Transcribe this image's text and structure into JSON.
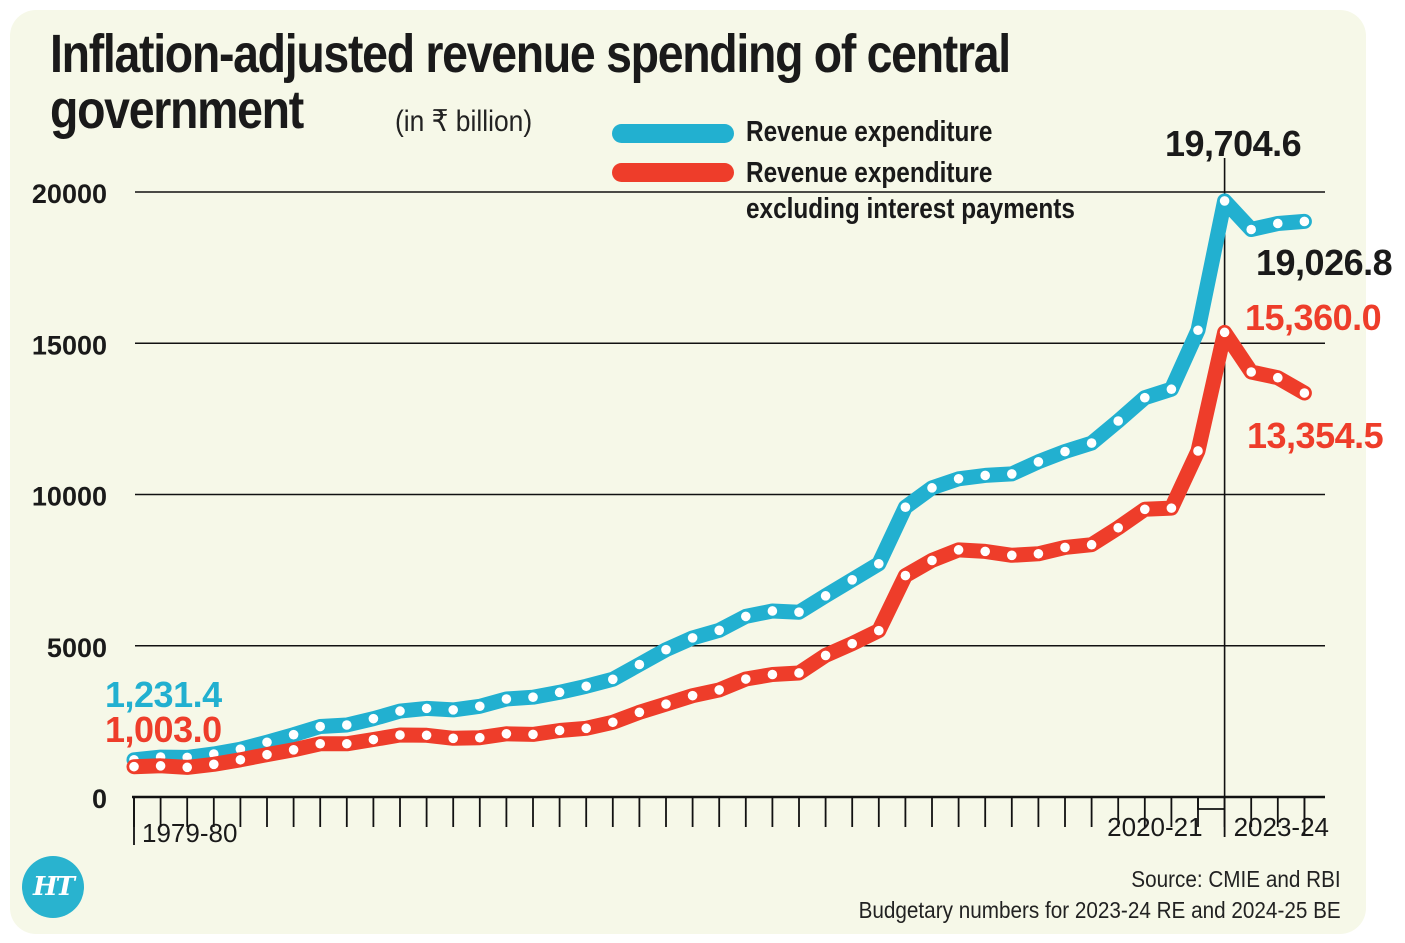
{
  "title": "Inflation-adjusted revenue spending of central government",
  "title_lines": [
    "Inflation-adjusted revenue spending of central",
    "government"
  ],
  "subtitle": "(in ₹ billion)",
  "legend": [
    {
      "label": "Revenue expenditure",
      "color": "#22b0d0"
    },
    {
      "label": "Revenue expenditure excluding interest payments",
      "label_lines": [
        "Revenue expenditure",
        "excluding interest payments"
      ],
      "color": "#ee3d2a"
    }
  ],
  "source": "Source: CMIE and RBI",
  "note": "Budgetary numbers for 2023-24 RE and 2024-25 BE",
  "logo": "HT",
  "colors": {
    "background": "#f6f8e8",
    "blue": "#22b0d0",
    "red": "#ee3d2a",
    "text": "#1a1a1a"
  },
  "chart_data": {
    "type": "line",
    "x_start_label": "1979-80",
    "x_marked_labels": [
      "1979-80",
      "2020-21",
      "2023-24"
    ],
    "ylim": [
      0,
      20000
    ],
    "yticks": [
      0,
      5000,
      10000,
      15000,
      20000
    ],
    "grid": true,
    "legend_position": "top-center",
    "series": [
      {
        "name": "Revenue expenditure",
        "color": "#22b0d0",
        "values": [
          1231.4,
          1320,
          1310,
          1420,
          1580,
          1810,
          2060,
          2330,
          2380,
          2590,
          2840,
          2930,
          2880,
          3000,
          3240,
          3300,
          3460,
          3660,
          3890,
          4380,
          4870,
          5260,
          5510,
          5970,
          6150,
          6110,
          6650,
          7180,
          7710,
          9580,
          10220,
          10520,
          10630,
          10680,
          11080,
          11420,
          11700,
          12430,
          13200,
          13480,
          15430,
          19704.6,
          18760,
          18960,
          19026.8
        ]
      },
      {
        "name": "Revenue expenditure excluding interest payments",
        "color": "#ee3d2a",
        "values": [
          1003.0,
          1030,
          980,
          1080,
          1230,
          1400,
          1560,
          1760,
          1760,
          1900,
          2050,
          2040,
          1940,
          1960,
          2090,
          2070,
          2200,
          2270,
          2470,
          2800,
          3070,
          3350,
          3540,
          3900,
          4050,
          4100,
          4680,
          5070,
          5500,
          7320,
          7820,
          8170,
          8120,
          7990,
          8040,
          8250,
          8340,
          8900,
          9510,
          9550,
          11440,
          15360.0,
          14050,
          13860,
          13354.5
        ]
      }
    ],
    "annotations": [
      {
        "text": "1,231.4",
        "series": 0,
        "index": 0,
        "color": "#22b0d0"
      },
      {
        "text": "1,003.0",
        "series": 1,
        "index": 0,
        "color": "#ee3d2a"
      },
      {
        "text": "19,704.6",
        "series": 0,
        "index": 41,
        "color": "#1a1a1a"
      },
      {
        "text": "19,026.8",
        "series": 0,
        "index": 44,
        "color": "#1a1a1a"
      },
      {
        "text": "15,360.0",
        "series": 1,
        "index": 41,
        "color": "#ee3d2a"
      },
      {
        "text": "13,354.5",
        "series": 1,
        "index": 44,
        "color": "#ee3d2a"
      }
    ]
  }
}
